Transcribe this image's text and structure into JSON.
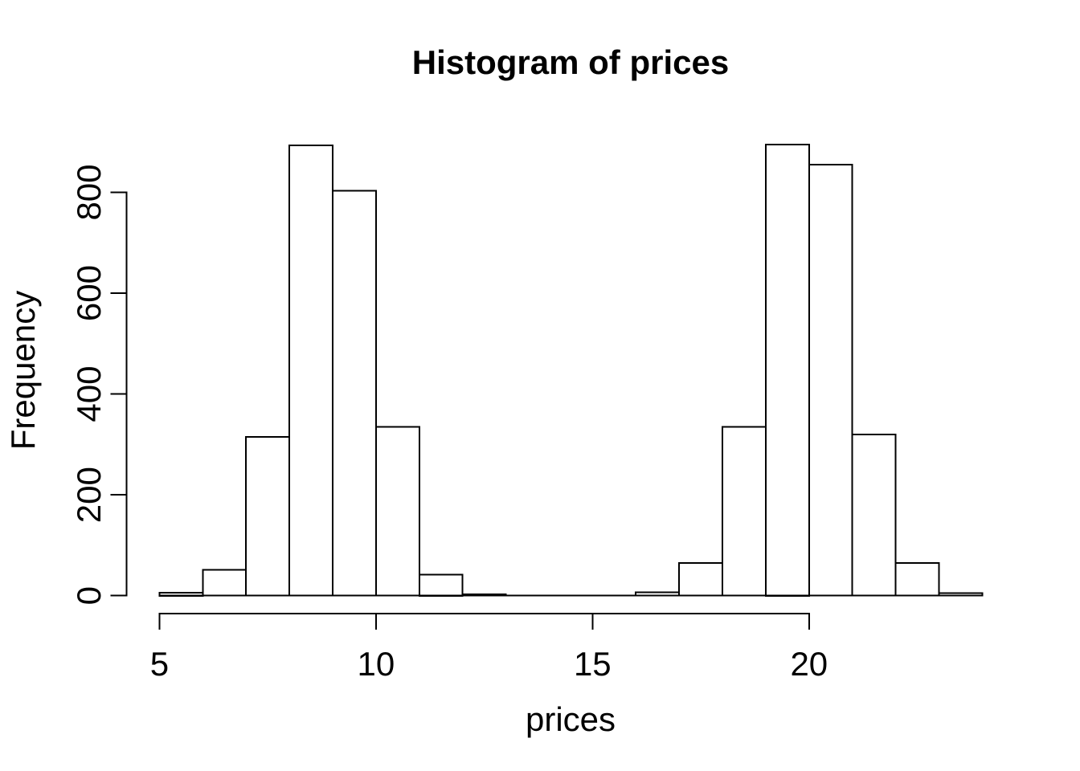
{
  "chart_data": {
    "type": "bar",
    "variant": "histogram",
    "title": "Histogram of prices",
    "xlabel": "prices",
    "ylabel": "Frequency",
    "bin_edges": [
      5,
      6,
      7,
      8,
      9,
      10,
      11,
      12,
      13,
      14,
      15,
      16,
      17,
      18,
      19,
      20,
      21,
      22,
      23,
      24
    ],
    "counts": [
      6,
      51,
      315,
      893,
      803,
      335,
      42,
      3,
      0,
      0,
      0,
      7,
      65,
      335,
      895,
      855,
      320,
      65,
      5
    ],
    "x_ticks": [
      5,
      10,
      15,
      20
    ],
    "y_ticks": [
      0,
      200,
      400,
      600,
      800
    ],
    "xlim": [
      5,
      24
    ],
    "ylim": [
      0,
      895
    ],
    "axis_padding_frac": 0.04,
    "grid": false,
    "legend": "none",
    "bar_fill": "#ffffff",
    "bar_stroke": "#000000",
    "axis_color": "#000000",
    "text_color": "#000000",
    "background": "#ffffff"
  }
}
